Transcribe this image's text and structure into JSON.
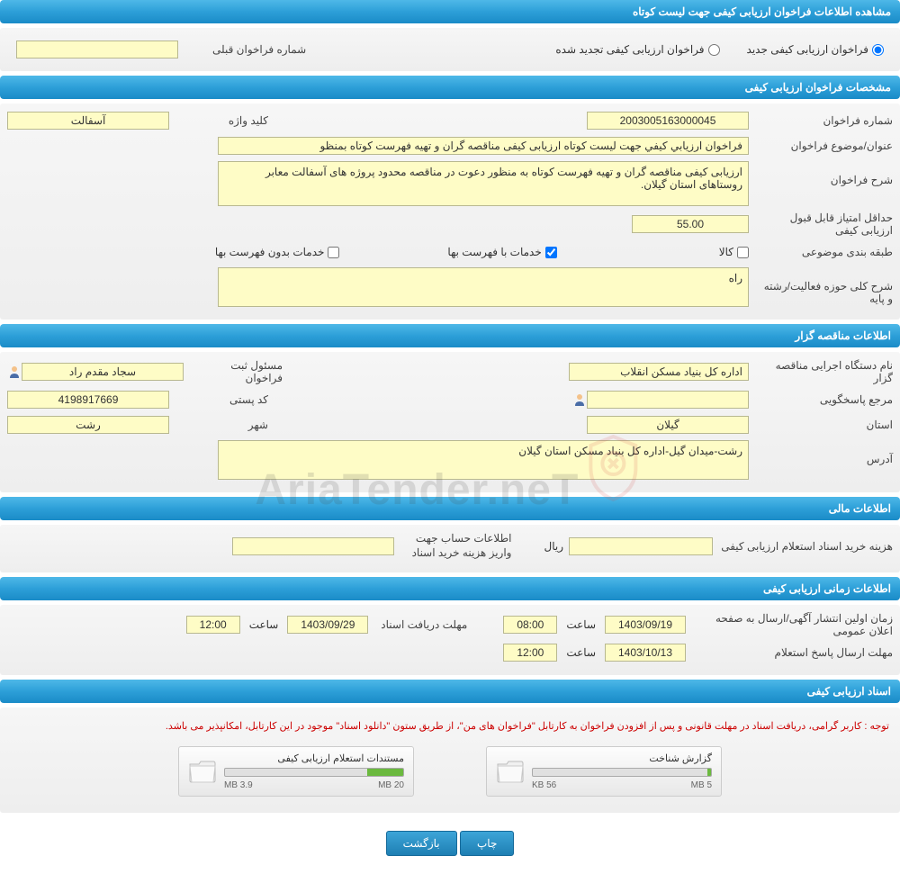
{
  "sections": {
    "main_header": "مشاهده اطلاعات فراخوان ارزیابی کیفی جهت لیست کوتاه",
    "spec_header": "مشخصات فراخوان ارزیابی کیفی",
    "tender_header": "اطلاعات مناقصه گزار",
    "financial_header": "اطلاعات مالی",
    "time_header": "اطلاعات زمانی ارزیابی کیفی",
    "docs_header": "اسناد ارزیابی کیفی"
  },
  "radio": {
    "new": "فراخوان ارزیابی کیفی جدید",
    "renewed": "فراخوان ارزیابی کیفی تجدید شده",
    "prev_number_label": "شماره فراخوان قبلی",
    "prev_number": ""
  },
  "spec": {
    "number_label": "شماره فراخوان",
    "number": "2003005163000045",
    "keyword_label": "کلید واژه",
    "keyword": "آسفالت",
    "title_label": "عنوان/موضوع فراخوان",
    "title": "فراخوان ارزیابي کیفي جهت لیست کوتاه ارزیابی کیفی مناقصه گران و تهیه فهرست کوتاه بمنظو",
    "desc_label": "شرح فراخوان",
    "desc": "ارزیابی کیفی مناقصه گران و تهیه فهرست کوتاه به منظور دعوت در مناقصه محدود پروژه های آسفالت معابر روستاهای استان گیلان.",
    "min_score_label": "حداقل امتیاز قابل قبول ارزیابی کیفی",
    "min_score": "55.00",
    "category_label": "طبقه بندی موضوعی",
    "cat_goods": "کالا",
    "cat_with_price": "خدمات با فهرست بها",
    "cat_without_price": "خدمات بدون فهرست بها",
    "activity_label": "شرح کلی حوزه فعالیت/رشته و پایه",
    "activity": "راه"
  },
  "tender": {
    "org_label": "نام دستگاه اجرایی مناقصه گزار",
    "org": "اداره کل بنیاد مسکن انقلاب",
    "registrar_label": "مسئول ثبت فراخوان",
    "registrar": "سجاد  مقدم راد",
    "responder_label": "مرجع پاسخگویی",
    "responder": "",
    "postal_label": "کد پستی",
    "postal": "4198917669",
    "province_label": "استان",
    "province": "گیلان",
    "city_label": "شهر",
    "city": "رشت",
    "address_label": "آدرس",
    "address": "رشت-میدان گیل-اداره کل بنیاد مسکن استان گیلان"
  },
  "financial": {
    "cost_label": "هزینه خرید اسناد استعلام ارزیابی کیفی",
    "cost": "",
    "currency": "ریال",
    "account_label": "اطلاعات حساب جهت واریز هزینه خرید اسناد",
    "account": ""
  },
  "time": {
    "publish_label": "زمان اولین انتشار آگهی/ارسال به صفحه اعلان عمومی",
    "publish_date": "1403/09/19",
    "publish_time": "08:00",
    "receive_label": "مهلت دریافت اسناد",
    "receive_date": "1403/09/29",
    "receive_time": "12:00",
    "response_label": "مهلت ارسال پاسخ استعلام",
    "response_date": "1403/10/13",
    "response_time": "12:00",
    "time_word": "ساعت"
  },
  "docs": {
    "warning": "توجه : کاربر گرامی، دریافت اسناد در مهلت قانونی و پس از افزودن فراخوان به کارتابل \"فراخوان های من\"، از طریق ستون \"دانلود اسناد\" موجود در این کارتابل، امکانپذیر می باشد.",
    "file1_name": "گزارش شناخت",
    "file1_used": "56 KB",
    "file1_total": "5 MB",
    "file1_pct": 2,
    "file2_name": "مستندات استعلام ارزیابی کیفی",
    "file2_used": "3.9 MB",
    "file2_total": "20 MB",
    "file2_pct": 20
  },
  "buttons": {
    "print": "چاپ",
    "back": "بازگشت"
  },
  "colors": {
    "header_bg": "#2d9fd8",
    "value_bg": "#fefcc6",
    "warning": "#c00"
  }
}
